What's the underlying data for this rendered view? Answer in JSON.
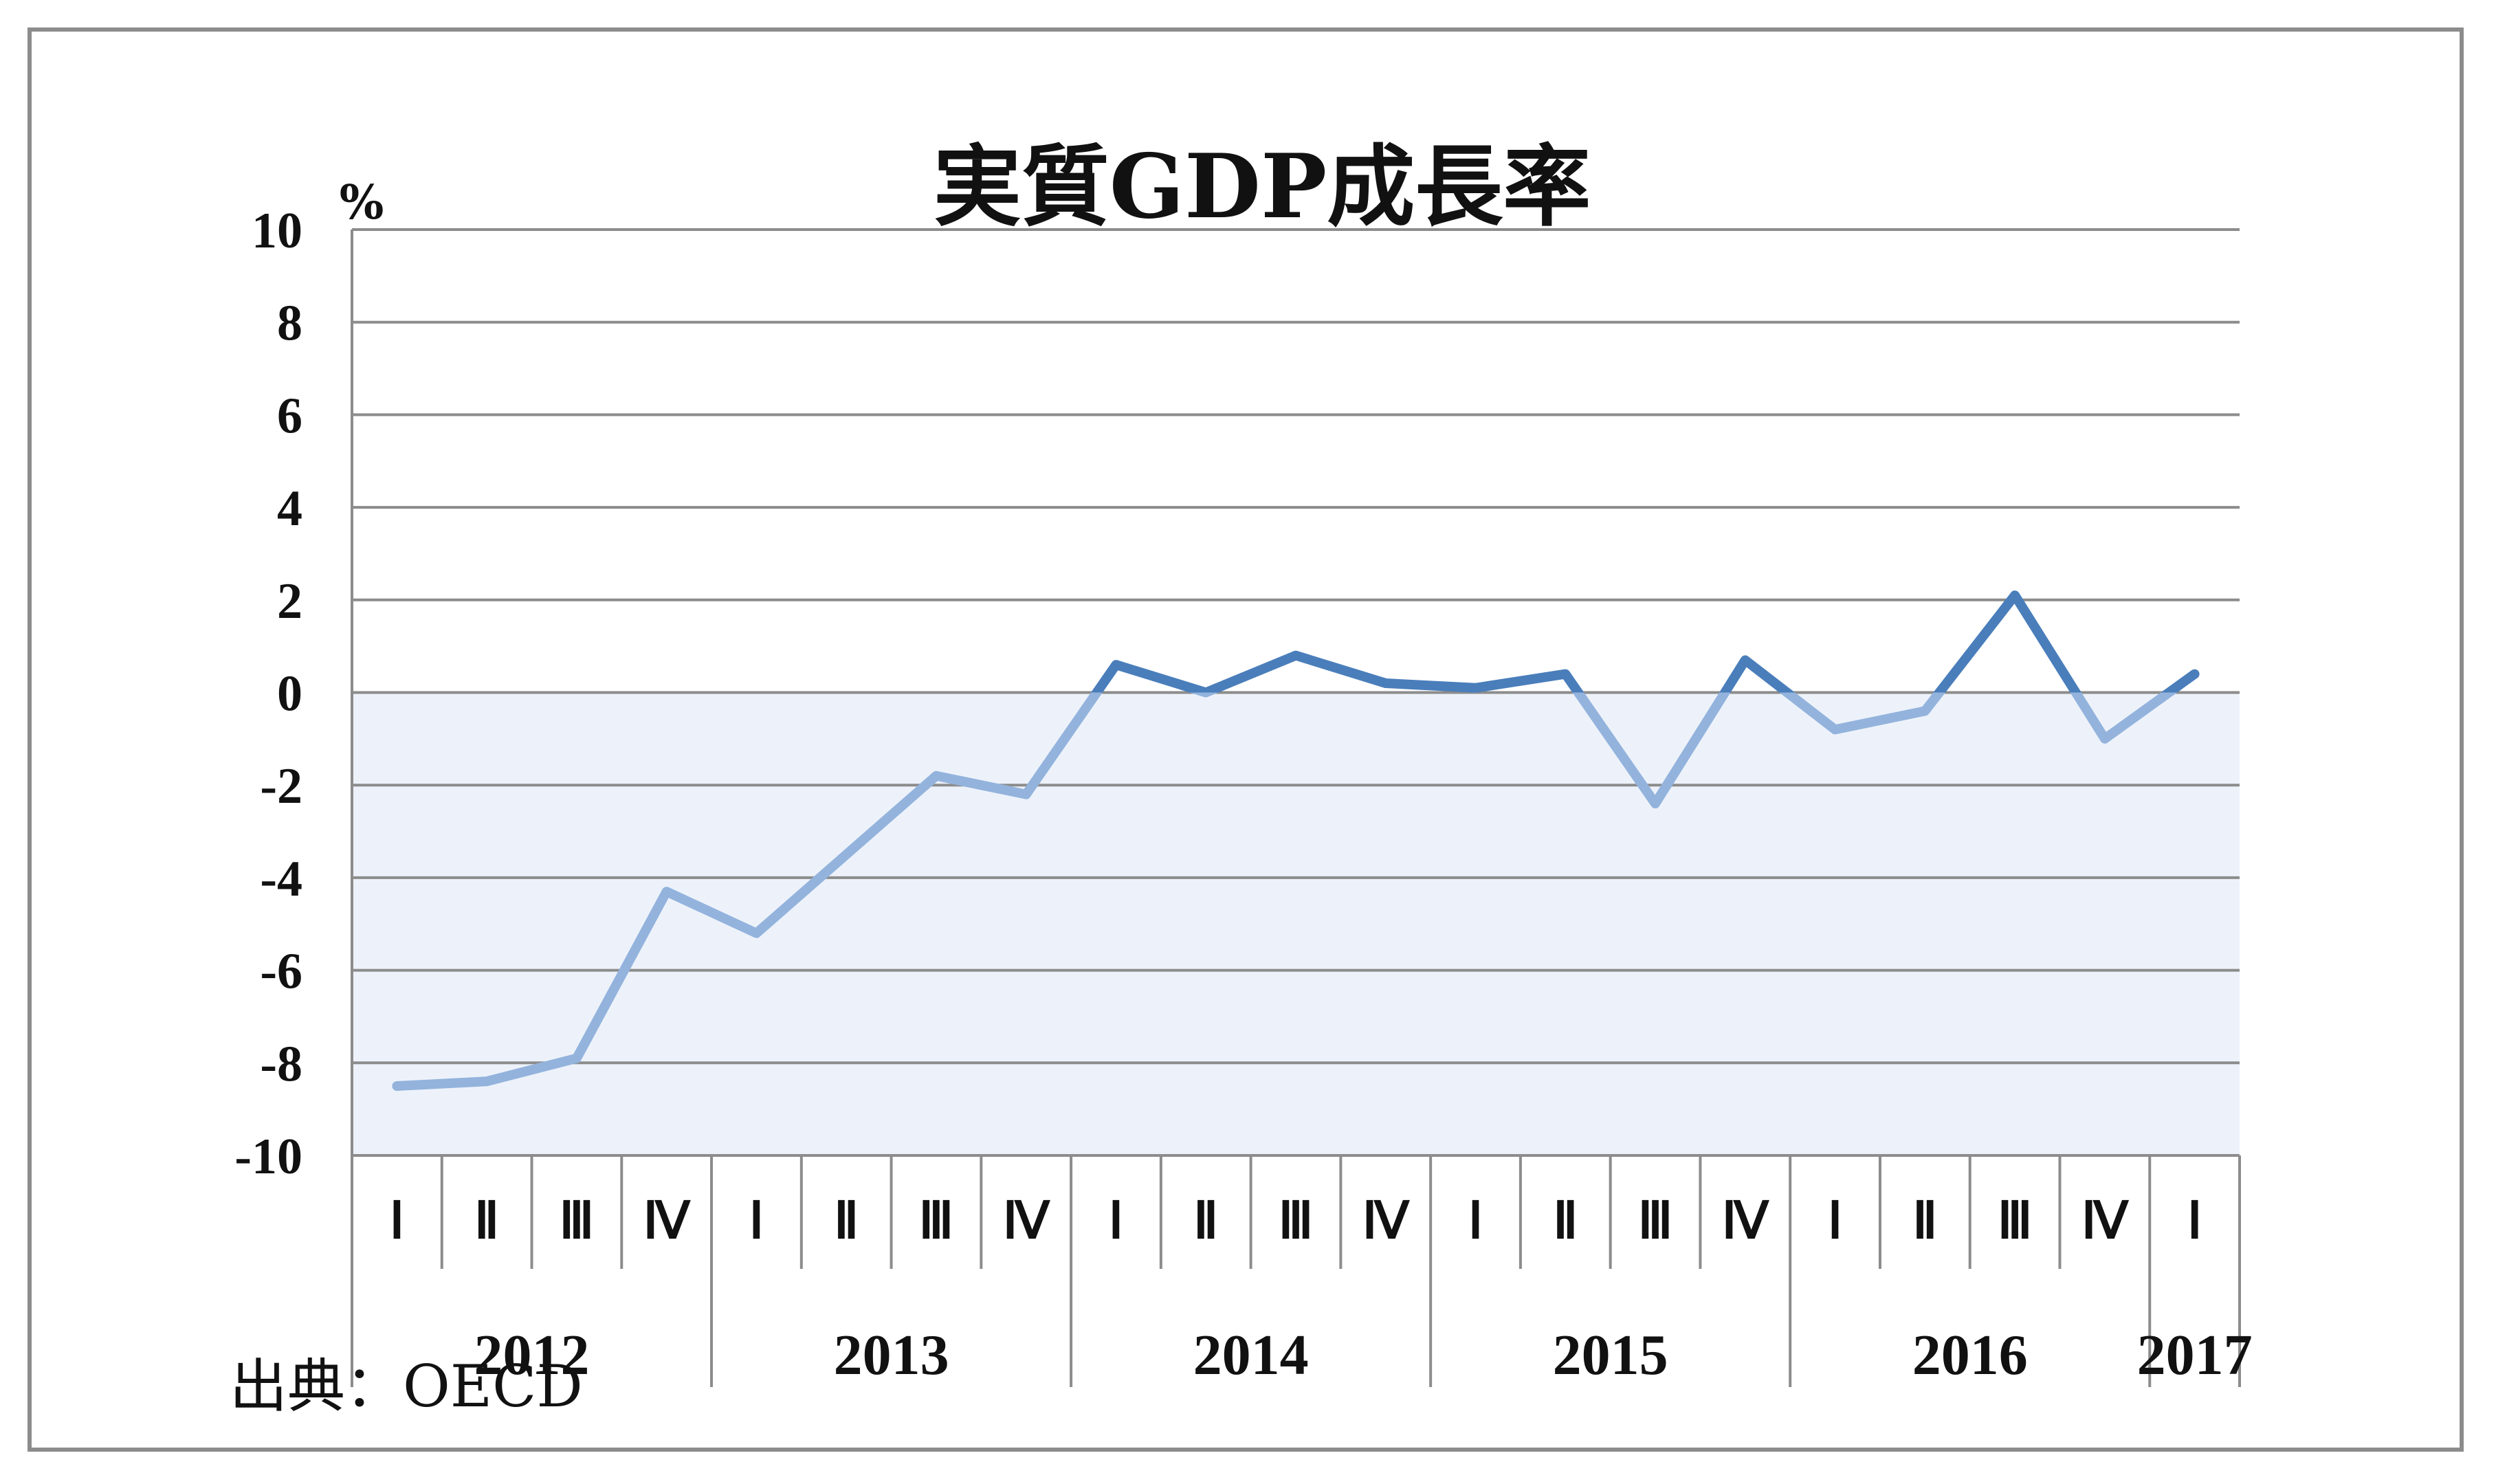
{
  "chart_data": {
    "type": "line",
    "title": "実質GDP成長率",
    "unit_label": "%",
    "ylim": [
      -10,
      10
    ],
    "yticks": [
      10,
      8,
      6,
      4,
      2,
      0,
      -2,
      -4,
      -6,
      -8,
      -10
    ],
    "categories": [
      "I",
      "II",
      "III",
      "IV",
      "I",
      "II",
      "III",
      "IV",
      "I",
      "II",
      "III",
      "IV",
      "I",
      "II",
      "III",
      "IV",
      "I",
      "II",
      "III",
      "IV",
      "I"
    ],
    "category_labels": [
      "Ⅰ",
      "Ⅱ",
      "Ⅲ",
      "Ⅳ",
      "Ⅰ",
      "Ⅱ",
      "Ⅲ",
      "Ⅳ",
      "Ⅰ",
      "Ⅱ",
      "Ⅲ",
      "Ⅳ",
      "Ⅰ",
      "Ⅱ",
      "Ⅲ",
      "Ⅳ",
      "Ⅰ",
      "Ⅱ",
      "Ⅲ",
      "Ⅳ",
      "Ⅰ"
    ],
    "years": [
      {
        "label": "2012",
        "start": 0,
        "count": 4
      },
      {
        "label": "2013",
        "start": 4,
        "count": 4
      },
      {
        "label": "2014",
        "start": 8,
        "count": 4
      },
      {
        "label": "2015",
        "start": 12,
        "count": 4
      },
      {
        "label": "2016",
        "start": 16,
        "count": 4
      },
      {
        "label": "2017",
        "start": 20,
        "count": 1
      }
    ],
    "series": [
      {
        "values": [
          -8.5,
          -8.4,
          -7.9,
          -4.3,
          -5.2,
          -3.5,
          -1.8,
          -2.2,
          0.6,
          0.0,
          0.8,
          0.2,
          0.1,
          0.4,
          -2.4,
          0.7,
          -0.8,
          -0.4,
          2.1,
          -1.0,
          0.4
        ]
      }
    ],
    "colors": {
      "positive_line": "#4a7ebb",
      "negative_line": "#93b3dd",
      "negative_fill": "#edf2fa",
      "gridline": "#8c8c8c"
    },
    "grid": true
  },
  "source_note": "出典：OECD"
}
